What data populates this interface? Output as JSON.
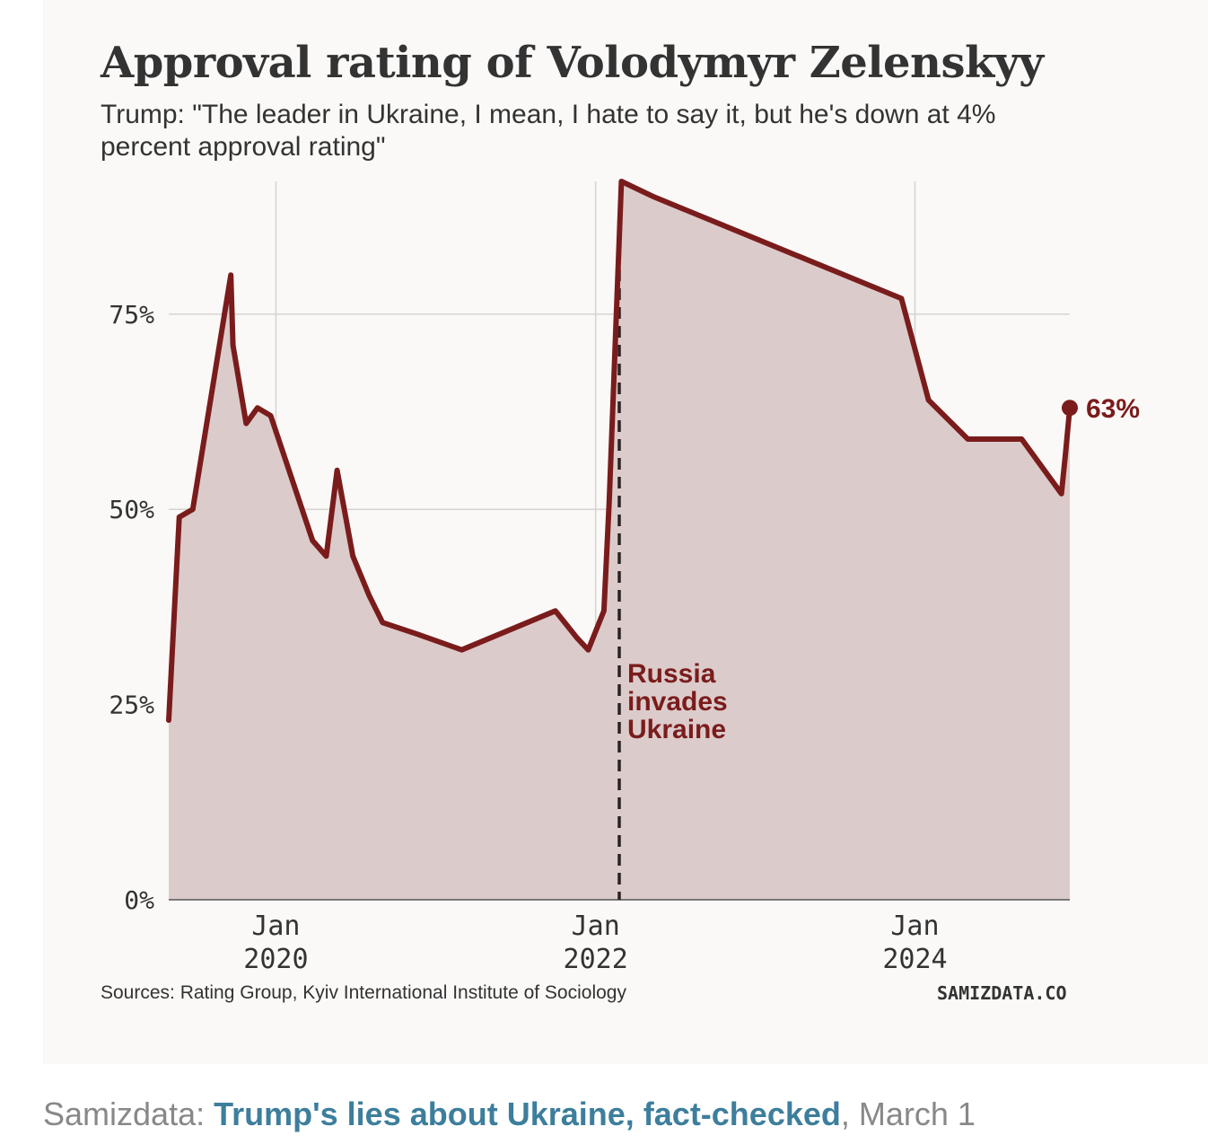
{
  "chart_data": {
    "type": "area",
    "title": "Approval rating of Volodymyr Zelenskyy",
    "subtitle": "Trump: \"The leader in Ukraine, I mean, I hate to say it, but he's down at 4% percent approval rating\"",
    "xlabel": "",
    "ylabel": "",
    "ylim": [
      0,
      92
    ],
    "xlim": [
      "2019-05-01",
      "2024-12-20"
    ],
    "y_ticks": [
      {
        "value": 0,
        "label": "0%"
      },
      {
        "value": 25,
        "label": "25%"
      },
      {
        "value": 50,
        "label": "50%"
      },
      {
        "value": 75,
        "label": "75%"
      }
    ],
    "x_ticks": [
      {
        "date": "2020-01-01",
        "month": "Jan",
        "year": "2020"
      },
      {
        "date": "2022-01-01",
        "month": "Jan",
        "year": "2022"
      },
      {
        "date": "2024-01-01",
        "month": "Jan",
        "year": "2024"
      }
    ],
    "grid": true,
    "series": [
      {
        "name": "Approval rating",
        "color": "#7a1c1c",
        "fill": "#dccbcb",
        "points": [
          {
            "date": "2019-05-01",
            "value": 23
          },
          {
            "date": "2019-05-25",
            "value": 49
          },
          {
            "date": "2019-06-25",
            "value": 50
          },
          {
            "date": "2019-09-20",
            "value": 80
          },
          {
            "date": "2019-09-25",
            "value": 71
          },
          {
            "date": "2019-10-25",
            "value": 61
          },
          {
            "date": "2019-11-20",
            "value": 63
          },
          {
            "date": "2019-12-20",
            "value": 62
          },
          {
            "date": "2020-03-25",
            "value": 46
          },
          {
            "date": "2020-04-25",
            "value": 44
          },
          {
            "date": "2020-05-20",
            "value": 55
          },
          {
            "date": "2020-06-25",
            "value": 44
          },
          {
            "date": "2020-08-01",
            "value": 39
          },
          {
            "date": "2020-09-01",
            "value": 35.5
          },
          {
            "date": "2020-11-20",
            "value": 34
          },
          {
            "date": "2021-03-01",
            "value": 32
          },
          {
            "date": "2021-10-01",
            "value": 37
          },
          {
            "date": "2021-11-20",
            "value": 33.5
          },
          {
            "date": "2021-12-15",
            "value": 32
          },
          {
            "date": "2022-01-20",
            "value": 37
          },
          {
            "date": "2022-02-01",
            "value": 51
          },
          {
            "date": "2022-03-01",
            "value": 92
          },
          {
            "date": "2022-05-15",
            "value": 90
          },
          {
            "date": "2023-12-01",
            "value": 77
          },
          {
            "date": "2024-02-01",
            "value": 64
          },
          {
            "date": "2024-05-01",
            "value": 59
          },
          {
            "date": "2024-09-01",
            "value": 59
          },
          {
            "date": "2024-12-01",
            "value": 52
          },
          {
            "date": "2024-12-10",
            "value": 57
          },
          {
            "date": "2024-12-20",
            "value": 63
          }
        ]
      }
    ],
    "annotations": {
      "invasion": {
        "date": "2022-02-24",
        "lines": [
          "Russia",
          "invades",
          "Ukraine"
        ]
      },
      "last_value_label": "63%"
    }
  },
  "footer": {
    "sources": "Sources: Rating Group, Kyiv International Institute of Sociology",
    "brand": "SAMIZDATA.CO"
  },
  "caption": {
    "source": "Samizdata: ",
    "link_text": "Trump's lies about Ukraine, fact-checked",
    "date": ", March 1"
  }
}
